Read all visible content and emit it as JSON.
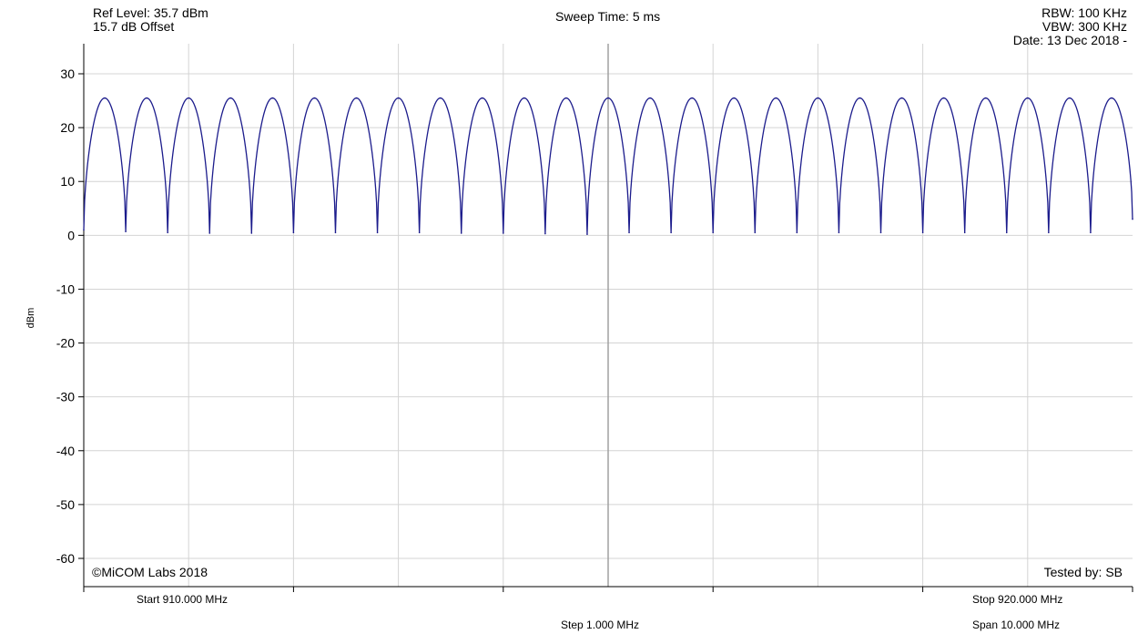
{
  "header": {
    "ref_level": "Ref Level: 35.7 dBm",
    "offset": "15.7 dB Offset",
    "sweep_time": "Sweep Time: 5 ms",
    "rbw": "RBW: 100 KHz",
    "vbw": "VBW: 300 KHz",
    "date": "Date: 13 Dec 2018 -"
  },
  "footer": {
    "copyright": "©MiCOM Labs 2018",
    "tested_by": "Tested by: SB",
    "start": "Start 910.000 MHz",
    "stop": "Stop 920.000 MHz",
    "step": "Step 1.000 MHz",
    "span": "Span 10.000 MHz"
  },
  "colors": {
    "trace": "#1c1c8c",
    "grid": "#d4d4d4",
    "center_line": "#a0a0a0",
    "axis": "#000000"
  },
  "chart_data": {
    "type": "line",
    "ylabel": "dBm",
    "xlabel": "",
    "title": "",
    "ylim": [
      -65,
      35
    ],
    "yticks": [
      30,
      20,
      10,
      0,
      -10,
      -20,
      -30,
      -40,
      -50,
      -60
    ],
    "xlim": [
      910.0,
      920.0
    ],
    "x_unit": "MHz",
    "grid": true,
    "series": [
      {
        "peaks": {
          "x": [
            910.2,
            910.6,
            911.0,
            911.4,
            911.8,
            912.2,
            912.6,
            913.0,
            913.4,
            913.8,
            914.2,
            914.6,
            915.0,
            915.4,
            915.8,
            916.2,
            916.6,
            917.0,
            917.4,
            917.8,
            918.2,
            918.6,
            919.0,
            919.4,
            919.8
          ],
          "y": [
            25.5,
            25.5,
            25.5,
            25.5,
            25.5,
            25.5,
            25.5,
            25.5,
            25.5,
            25.5,
            25.5,
            25.5,
            25.5,
            25.5,
            25.5,
            25.5,
            25.5,
            25.5,
            25.5,
            25.5,
            25.5,
            25.5,
            25.5,
            25.5,
            25.5
          ]
        },
        "nulls": {
          "x": [
            910.0,
            910.4,
            910.8,
            911.2,
            911.6,
            912.0,
            912.4,
            912.8,
            913.2,
            913.6,
            914.0,
            914.4,
            914.8,
            915.2,
            915.6,
            916.0,
            916.4,
            916.8,
            917.2,
            917.6,
            918.0,
            918.4,
            918.8,
            919.2,
            919.6,
            920.0
          ],
          "y": [
            1.0,
            0.7,
            0.5,
            0.4,
            0.4,
            0.5,
            0.5,
            0.5,
            0.5,
            0.4,
            0.4,
            0.3,
            0.2,
            0.5,
            0.5,
            0.5,
            0.5,
            0.5,
            0.5,
            0.5,
            0.5,
            0.5,
            0.5,
            0.5,
            0.5,
            3.0
          ]
        }
      }
    ]
  }
}
